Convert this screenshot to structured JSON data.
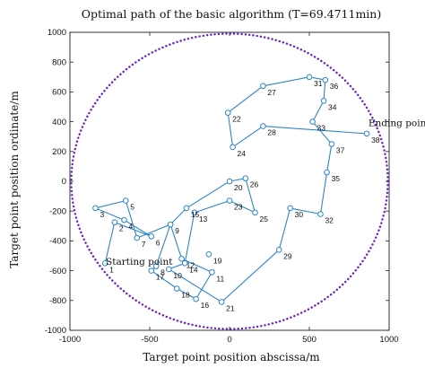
{
  "chart_data": {
    "type": "line",
    "title": "Optimal path of the basic algorithm (T=69.4711min)",
    "xlabel": "Target point position abscissa/m",
    "ylabel": "Target point position ordinate/m",
    "xlim": [
      -1000,
      1000
    ],
    "ylim": [
      -1000,
      1000
    ],
    "xticks": [
      -1000,
      -500,
      0,
      500,
      1000
    ],
    "yticks": [
      -1000,
      -800,
      -600,
      -400,
      -200,
      0,
      200,
      400,
      600,
      800,
      1000
    ],
    "grid": false,
    "colors": {
      "path": "#2e86c8",
      "boundary": "#6a1fc9",
      "axes": "#222222"
    },
    "boundary": {
      "shape": "circle",
      "center": [
        0,
        0
      ],
      "radius": 1000,
      "style": "dotted"
    },
    "annotations": [
      {
        "text": "Starting point",
        "x": -775,
        "y": -560
      },
      {
        "text": "Ending point",
        "x": 870,
        "y": 370
      }
    ],
    "points": [
      {
        "label": "1",
        "x": -780,
        "y": -550
      },
      {
        "label": "2",
        "x": -720,
        "y": -275
      },
      {
        "label": "3",
        "x": -840,
        "y": -180
      },
      {
        "label": "4",
        "x": -660,
        "y": -260
      },
      {
        "label": "5",
        "x": -650,
        "y": -130
      },
      {
        "label": "6",
        "x": -490,
        "y": -370
      },
      {
        "label": "7",
        "x": -580,
        "y": -380
      },
      {
        "label": "8",
        "x": -460,
        "y": -570
      },
      {
        "label": "9",
        "x": -370,
        "y": -290
      },
      {
        "label": "10",
        "x": -380,
        "y": -590
      },
      {
        "label": "11",
        "x": -110,
        "y": -610
      },
      {
        "label": "12",
        "x": -300,
        "y": -520
      },
      {
        "label": "13",
        "x": -220,
        "y": -210
      },
      {
        "label": "14",
        "x": -280,
        "y": -550
      },
      {
        "label": "15",
        "x": -270,
        "y": -180
      },
      {
        "label": "16",
        "x": -210,
        "y": -790
      },
      {
        "label": "17",
        "x": -490,
        "y": -600
      },
      {
        "label": "18",
        "x": -330,
        "y": -720
      },
      {
        "label": "19",
        "x": -130,
        "y": -490
      },
      {
        "label": "20",
        "x": 0,
        "y": 0
      },
      {
        "label": "21",
        "x": -50,
        "y": -810
      },
      {
        "label": "22",
        "x": -10,
        "y": 460
      },
      {
        "label": "23",
        "x": 0,
        "y": -130
      },
      {
        "label": "24",
        "x": 20,
        "y": 230
      },
      {
        "label": "25",
        "x": 160,
        "y": -210
      },
      {
        "label": "26",
        "x": 100,
        "y": 20
      },
      {
        "label": "27",
        "x": 210,
        "y": 640
      },
      {
        "label": "28",
        "x": 210,
        "y": 370
      },
      {
        "label": "29",
        "x": 310,
        "y": -460
      },
      {
        "label": "30",
        "x": 380,
        "y": -180
      },
      {
        "label": "31",
        "x": 500,
        "y": 700
      },
      {
        "label": "32",
        "x": 570,
        "y": -220
      },
      {
        "label": "33",
        "x": 520,
        "y": 400
      },
      {
        "label": "34",
        "x": 590,
        "y": 540
      },
      {
        "label": "35",
        "x": 610,
        "y": 60
      },
      {
        "label": "36",
        "x": 600,
        "y": 680
      },
      {
        "label": "37",
        "x": 640,
        "y": 250
      },
      {
        "label": "38",
        "x": 860,
        "y": 320
      }
    ],
    "path": [
      "1",
      "2",
      "6",
      "4",
      "3",
      "5",
      "7",
      "9",
      "8",
      "17",
      "18",
      "16",
      "11",
      "12",
      "9",
      "15",
      "20",
      "26",
      "25",
      "23",
      "13",
      "14",
      "10",
      "21",
      "29",
      "30",
      "32",
      "35",
      "37",
      "33",
      "34",
      "36",
      "31",
      "27",
      "22",
      "24",
      "28",
      "38"
    ]
  }
}
